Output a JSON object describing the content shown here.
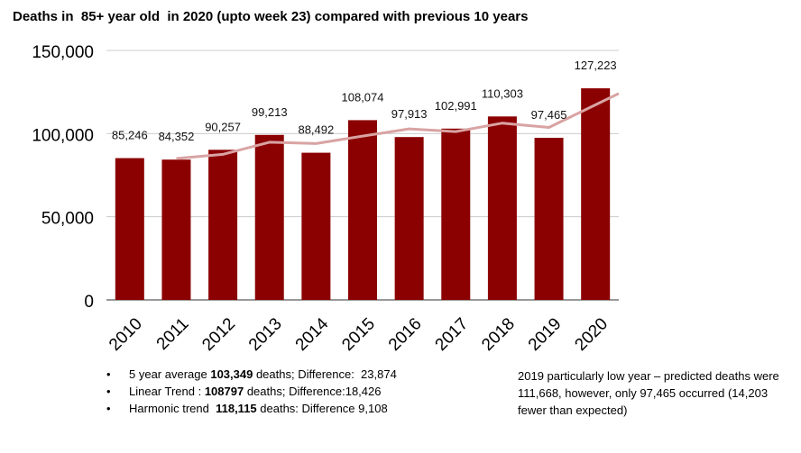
{
  "chart_data": {
    "type": "bar",
    "title": "Deaths in  85+ year old  in 2020 (upto week 23) compared with previous 10 years",
    "categories": [
      "2010",
      "2011",
      "2012",
      "2013",
      "2014",
      "2015",
      "2016",
      "2017",
      "2018",
      "2019",
      "2020"
    ],
    "values": [
      85246,
      84352,
      90257,
      99213,
      88492,
      108074,
      97913,
      102991,
      110303,
      97465,
      127223
    ],
    "data_labels": [
      "85,246",
      "84,352",
      "90,257",
      "99,213",
      "88,492",
      "108,074",
      "97,913",
      "102,991",
      "110,303",
      "97,465",
      "127,223"
    ],
    "yticks": [
      "0",
      "50,000",
      "100,000",
      "150,000"
    ],
    "ytick_values": [
      0,
      50000,
      100000,
      150000
    ],
    "ylim": [
      0,
      150000
    ],
    "grid": true,
    "xlabel": "",
    "ylabel": "",
    "bar_color": "#8b0000",
    "trend_line": {
      "color": "#d9a3a3",
      "values": [
        null,
        85000,
        87500,
        94800,
        94000,
        98500,
        102800,
        101200,
        106300,
        103700,
        117300
      ]
    }
  },
  "notes": [
    {
      "pre": "5 year average ",
      "bold": "103,349",
      "post": " deaths; Difference:  23,874"
    },
    {
      "pre": "Linear Trend : ",
      "bold": "108797",
      "post": " deaths; Difference:18,426"
    },
    {
      "pre": "Harmonic trend  ",
      "bold": "118,115",
      "post": " deaths: Difference 9,108"
    }
  ],
  "side_note": "2019 particularly low year – predicted deaths were 111,668, however, only 97,465 occurred (14,203 fewer than expected)"
}
